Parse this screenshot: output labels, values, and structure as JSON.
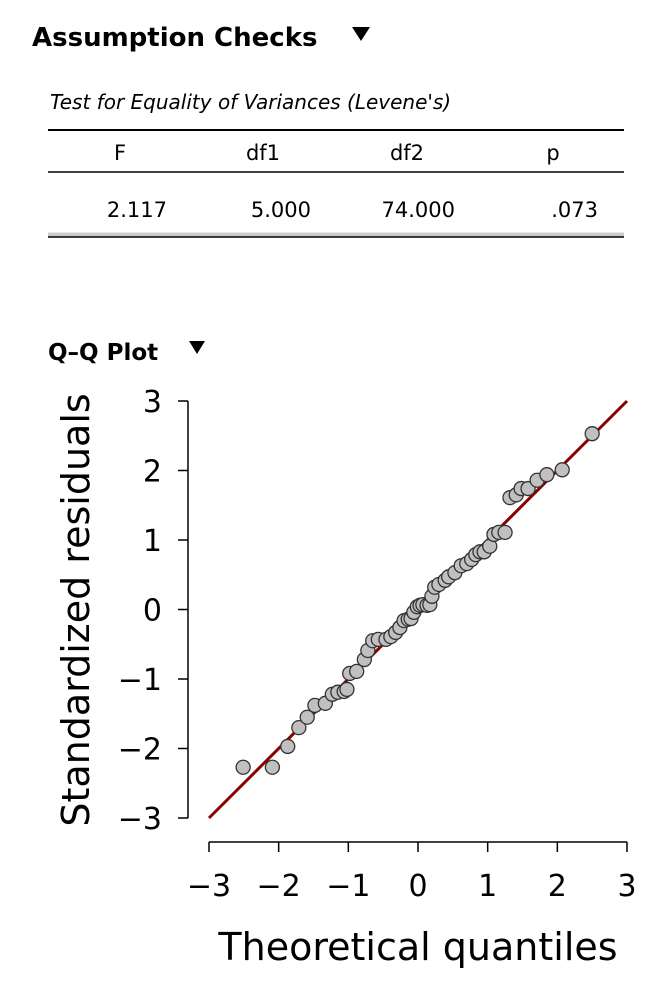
{
  "header": {
    "title": "Assumption Checks"
  },
  "table": {
    "title": "Test for Equality of Variances (Levene's)",
    "columns": [
      "F",
      "df1",
      "df2",
      "p"
    ],
    "rows": [
      [
        "2.117",
        "5.000",
        "74.000",
        ".073"
      ]
    ]
  },
  "plot_title": "Q–Q Plot",
  "chart_data": {
    "type": "scatter",
    "xlabel": "Theoretical quantiles",
    "ylabel": "Standardized residuals",
    "color": "#c0c0c0",
    "line_color": "#8b0000",
    "x": [
      -2.51,
      -2.09,
      -1.87,
      -1.71,
      -1.59,
      -1.48,
      -1.33,
      -1.23,
      -1.15,
      -1.06,
      -1.02,
      -0.98,
      -0.88,
      -0.77,
      -0.72,
      -0.65,
      -0.57,
      -0.46,
      -0.39,
      -0.32,
      -0.26,
      -0.2,
      -0.14,
      -0.1,
      -0.06,
      -0.01,
      0.03,
      0.07,
      0.13,
      0.17,
      0.2,
      0.24,
      0.3,
      0.39,
      0.44,
      0.53,
      0.62,
      0.7,
      0.77,
      0.83,
      0.89,
      0.95,
      1.03,
      1.09,
      1.16,
      1.25,
      1.32,
      1.41,
      1.48,
      1.58,
      1.71,
      1.85,
      2.07,
      2.5
    ],
    "y": [
      -2.27,
      -2.27,
      -1.97,
      -1.7,
      -1.55,
      -1.38,
      -1.35,
      -1.22,
      -1.19,
      -1.18,
      -1.15,
      -0.92,
      -0.89,
      -0.72,
      -0.59,
      -0.45,
      -0.43,
      -0.43,
      -0.39,
      -0.33,
      -0.26,
      -0.16,
      -0.14,
      -0.13,
      -0.04,
      0.04,
      0.06,
      0.07,
      0.06,
      0.07,
      0.19,
      0.32,
      0.36,
      0.42,
      0.47,
      0.53,
      0.63,
      0.66,
      0.72,
      0.79,
      0.83,
      0.83,
      0.91,
      1.08,
      1.11,
      1.11,
      1.61,
      1.65,
      1.74,
      1.74,
      1.86,
      1.94,
      2.01,
      2.53
    ],
    "xlim": [
      -3,
      3
    ],
    "ylim": [
      -3,
      3
    ],
    "xticks": [
      {
        "value": -3,
        "label": "−3"
      },
      {
        "value": -2,
        "label": "−2"
      },
      {
        "value": -1,
        "label": "−1"
      },
      0,
      1,
      2,
      3
    ],
    "yticks": [
      {
        "value": -3,
        "label": "−3"
      },
      {
        "value": -2,
        "label": "−2"
      },
      {
        "value": -1,
        "label": "−1"
      },
      0,
      1,
      2,
      3
    ]
  }
}
